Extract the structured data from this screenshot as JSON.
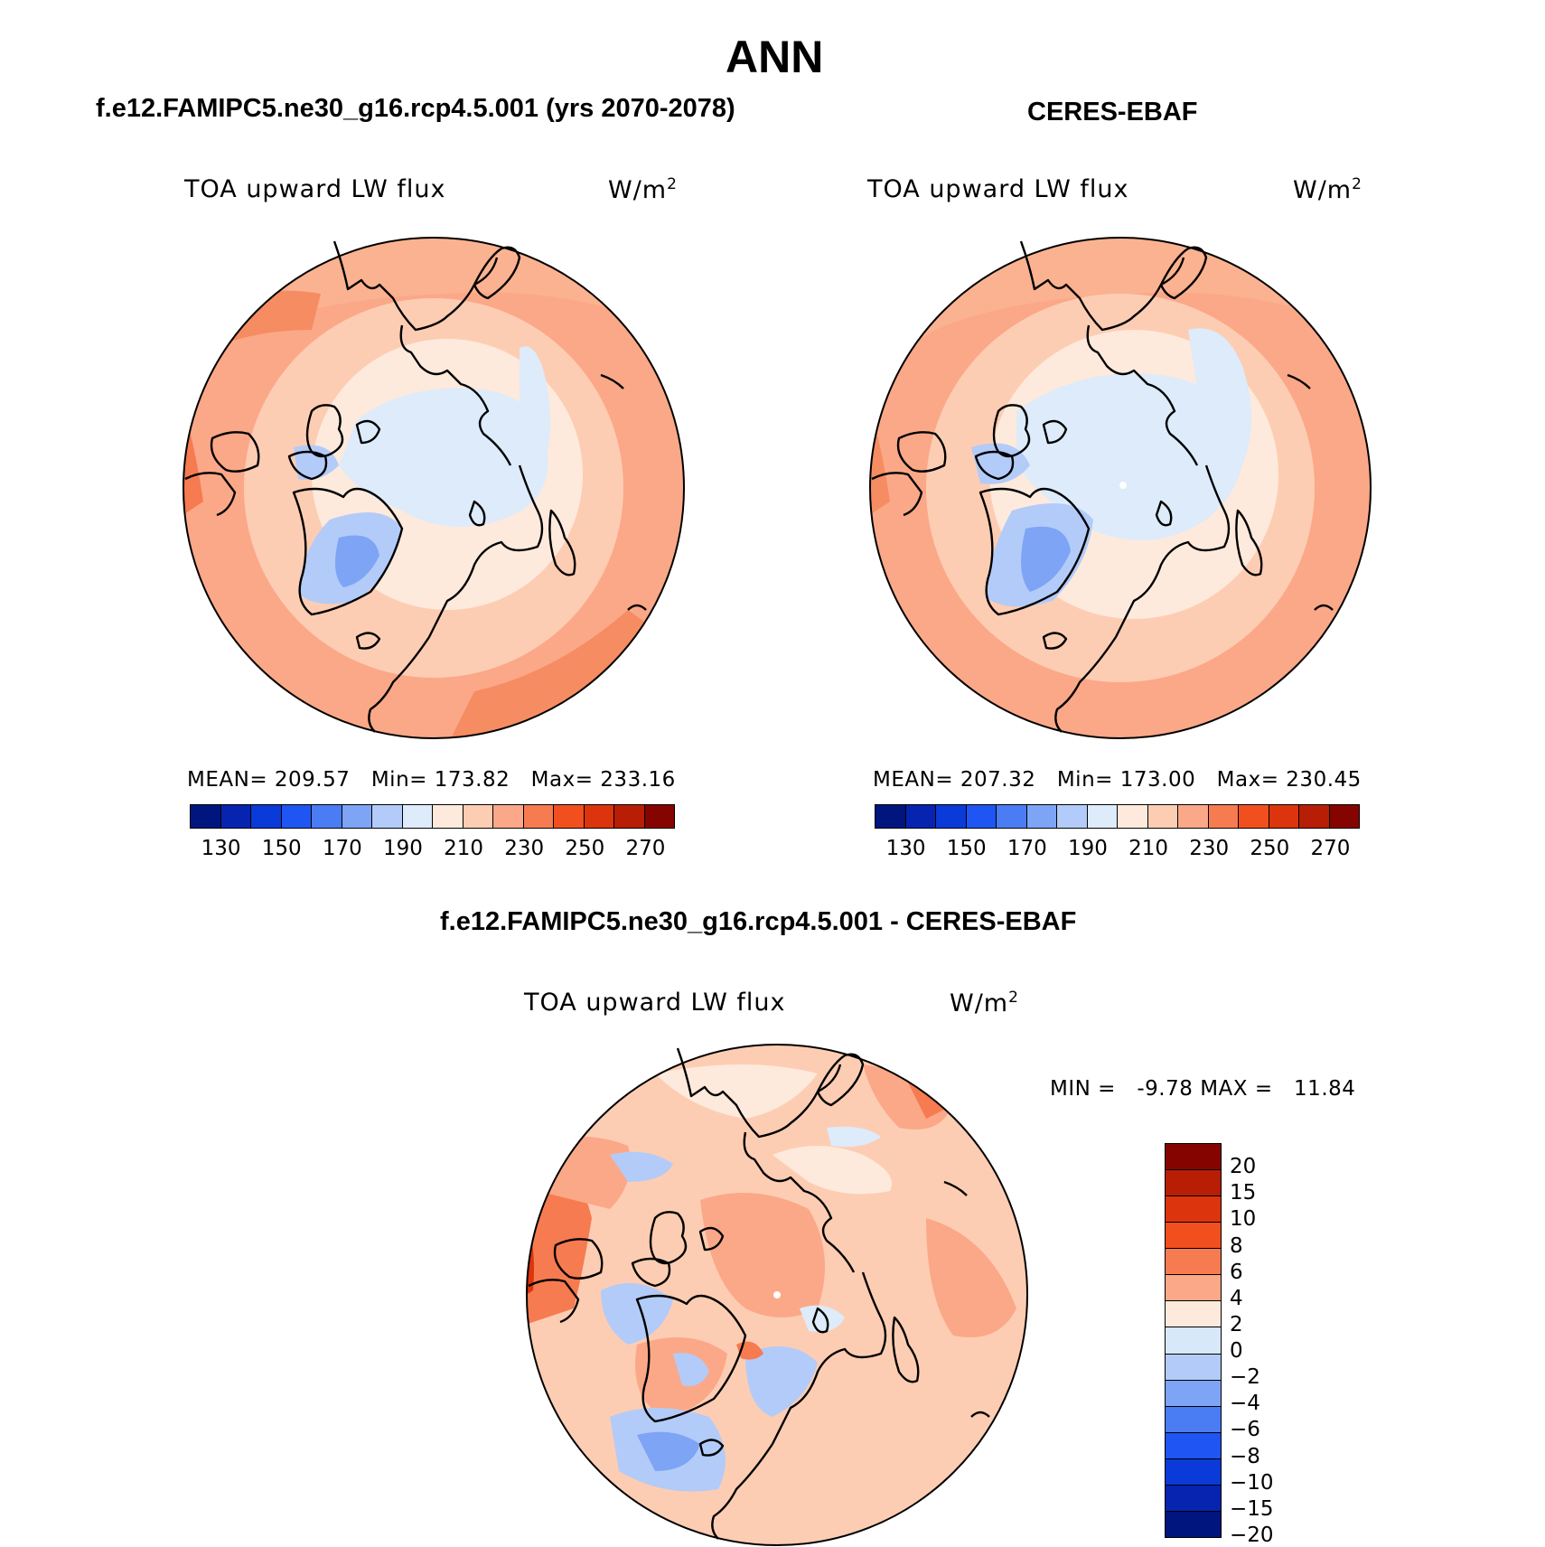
{
  "figure": {
    "title": "ANN",
    "panels": [
      {
        "id": "model",
        "title": "f.e12.FAMIPC5.ne30_g16.rcp4.5.001 (yrs 2070-2078)",
        "variable": "TOA upward LW flux",
        "units": "W/m",
        "units_exp": "2",
        "stats": {
          "mean_label": "MEAN=",
          "mean": "209.57",
          "min_label": "Min=",
          "min": "173.82",
          "max_label": "Max=",
          "max": "233.16"
        }
      },
      {
        "id": "obs",
        "title": "CERES-EBAF",
        "variable": "TOA upward LW flux",
        "units": "W/m",
        "units_exp": "2",
        "stats": {
          "mean_label": "MEAN=",
          "mean": "207.32",
          "min_label": "Min=",
          "min": "173.00",
          "max_label": "Max=",
          "max": "230.45"
        }
      },
      {
        "id": "diff",
        "title": "f.e12.FAMIPC5.ne30_g16.rcp4.5.001 - CERES-EBAF",
        "variable": "TOA upward LW flux",
        "units": "W/m",
        "units_exp": "2",
        "stats": {
          "min_label": "MIN =",
          "min": "-9.78",
          "max_label": "MAX =",
          "max": "11.84"
        }
      }
    ],
    "field_colorbar": {
      "colors": [
        "#00157e",
        "#0724b0",
        "#0a3ad8",
        "#1f55f2",
        "#4a7cf4",
        "#7ea4f6",
        "#b3cbf8",
        "#ddebfb",
        "#fdeadc",
        "#fdcdb3",
        "#fba888",
        "#f67b50",
        "#f24f1f",
        "#dc340c",
        "#b81e06",
        "#860400"
      ],
      "tick_labels": [
        "130",
        "150",
        "170",
        "190",
        "210",
        "230",
        "250",
        "270"
      ]
    },
    "diff_colorbar": {
      "colors": [
        "#860400",
        "#b81e06",
        "#dc340c",
        "#f24f1f",
        "#f67b50",
        "#fba888",
        "#fdeadc",
        "#d8e8fb",
        "#b3cbf8",
        "#7ea4f6",
        "#4a7cf4",
        "#1f55f2",
        "#0a3ad8",
        "#0724b0",
        "#00157e"
      ],
      "tick_labels": [
        "20",
        "15",
        "10",
        "8",
        "6",
        "4",
        "2",
        "0",
        "−2",
        "−4",
        "−6",
        "−8",
        "−10",
        "−15",
        "−20"
      ]
    }
  }
}
